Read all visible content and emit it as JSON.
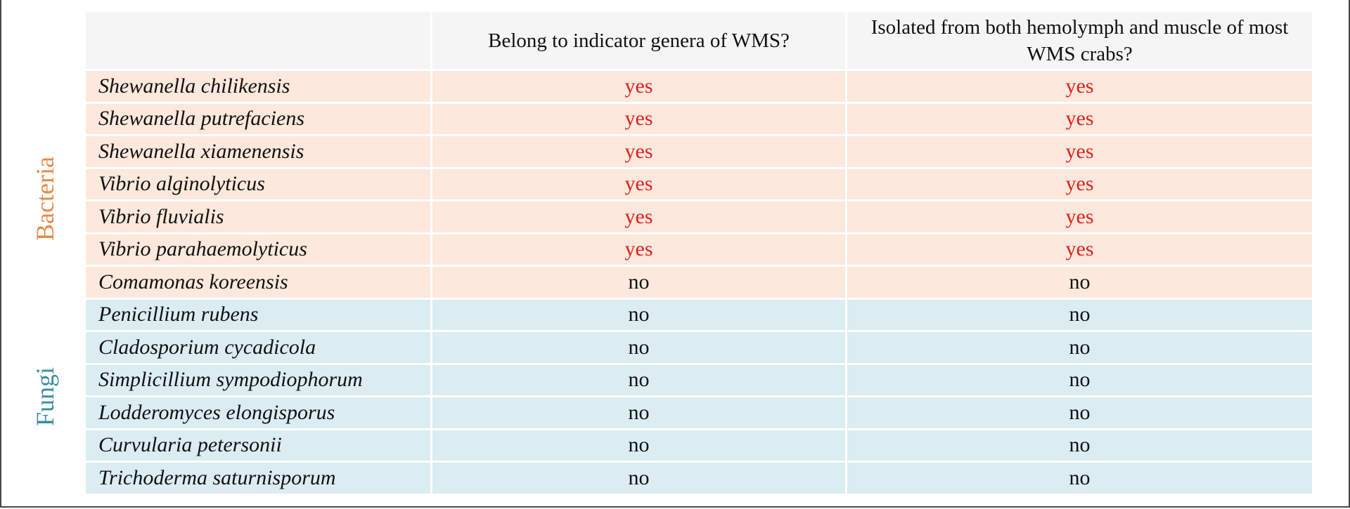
{
  "columns": {
    "organism": "",
    "indicator": "Belong to indicator genera of WMS?",
    "isolated": "Isolated from both hemolymph and muscle of most WMS crabs?"
  },
  "groups": {
    "bacteria": "Bacteria",
    "fungi": "Fungi"
  },
  "colors": {
    "bacteria_label": "#e58a4a",
    "fungi_label": "#3b8ea5",
    "bacteria_row": "#fce8dc",
    "fungi_row": "#dbecf3",
    "yes_text": "#e02020"
  },
  "rows": [
    {
      "organism": "Shewanella chilikensis",
      "indicator": "yes",
      "isolated": "yes"
    },
    {
      "organism": "Shewanella putrefaciens",
      "indicator": "yes",
      "isolated": "yes"
    },
    {
      "organism": "Shewanella xiamenensis",
      "indicator": "yes",
      "isolated": "yes"
    },
    {
      "organism": "Vibrio alginolyticus",
      "indicator": "yes",
      "isolated": "yes"
    },
    {
      "organism": "Vibrio fluvialis",
      "indicator": "yes",
      "isolated": "yes"
    },
    {
      "organism": "Vibrio parahaemolyticus",
      "indicator": "yes",
      "isolated": "yes"
    },
    {
      "organism": "Comamonas koreensis",
      "indicator": "no",
      "isolated": "no"
    },
    {
      "organism": "Penicillium rubens",
      "indicator": "no",
      "isolated": "no"
    },
    {
      "organism": "Cladosporium cycadicola",
      "indicator": "no",
      "isolated": "no"
    },
    {
      "organism": "Simplicillium sympodiophorum",
      "indicator": "no",
      "isolated": "no"
    },
    {
      "organism": "Lodderomyces elongisporus",
      "indicator": "no",
      "isolated": "no"
    },
    {
      "organism": "Curvularia petersonii",
      "indicator": "no",
      "isolated": "no"
    },
    {
      "organism": "Trichoderma saturnisporum",
      "indicator": "no",
      "isolated": "no"
    }
  ]
}
